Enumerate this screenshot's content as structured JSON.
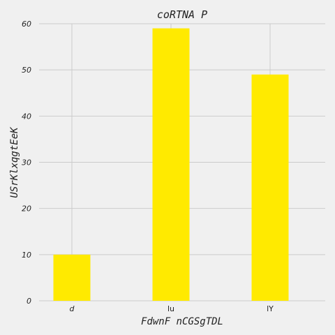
{
  "chart_data": {
    "type": "bar",
    "title": "coRTNA P",
    "xlabel": "FdwnF nCGSgTDL",
    "ylabel": "USrKlxqgtEeK",
    "categories": [
      "d",
      "lu",
      "lY"
    ],
    "category_italic": [
      true,
      false,
      false
    ],
    "values": [
      10,
      59,
      49
    ],
    "ylim": [
      0,
      60
    ],
    "yticks": [
      0,
      10,
      20,
      30,
      40,
      50,
      60
    ],
    "grid": true,
    "bar_color": "#ffea00",
    "grid_color": "#cbcbcb",
    "background": "#f0f0f0"
  }
}
